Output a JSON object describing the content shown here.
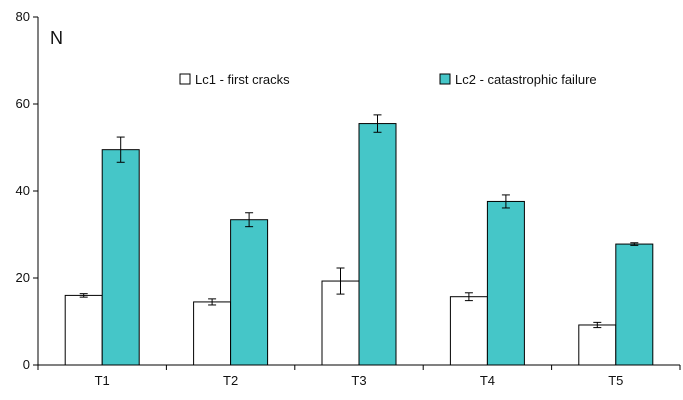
{
  "chart_data": {
    "type": "bar",
    "title": "",
    "xlabel": "",
    "ylabel": "N",
    "ylim": [
      0,
      80
    ],
    "yticks": [
      0,
      20,
      40,
      60,
      80
    ],
    "grid": false,
    "legend_position": "top",
    "categories": [
      "T1",
      "T2",
      "T3",
      "T4",
      "T5"
    ],
    "series": [
      {
        "name": "Lc1 - first cracks",
        "values": [
          16,
          14.5,
          19.3,
          15.7,
          9.2
        ],
        "errors": [
          0.4,
          0.7,
          3.0,
          0.9,
          0.6
        ],
        "color": "#ffffff"
      },
      {
        "name": "Lc2 - catastrophic failure",
        "values": [
          49.5,
          33.4,
          55.5,
          37.6,
          27.8
        ],
        "errors": [
          2.9,
          1.6,
          2.0,
          1.5,
          0.3
        ],
        "color": "#45c6c8"
      }
    ]
  }
}
